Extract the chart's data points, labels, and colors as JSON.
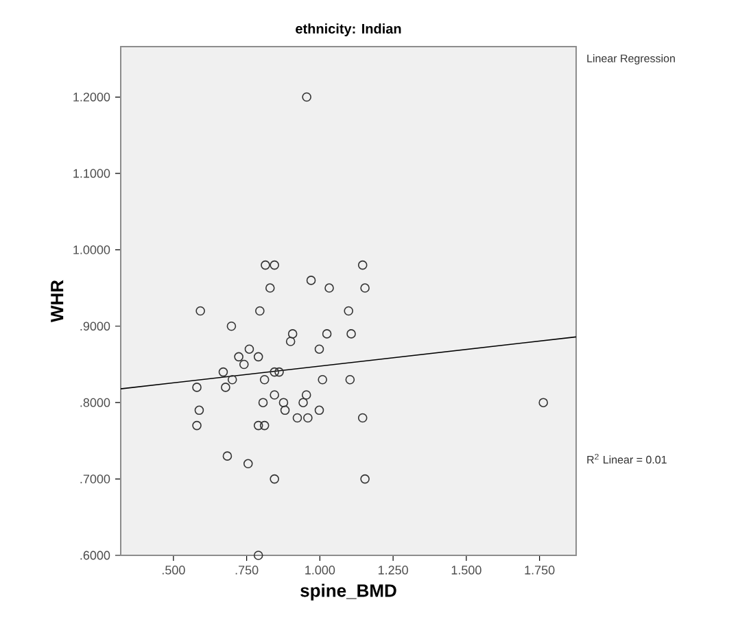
{
  "chart_data": {
    "type": "scatter",
    "title": "ethnicity: Indian",
    "xlabel": "spine_BMD",
    "ylabel": "WHR",
    "annotations": [
      "Linear Regression",
      "R$^{2}$ Linear = 0.01"
    ],
    "xlim": [
      0.32,
      1.875
    ],
    "ylim": [
      0.6,
      1.266
    ],
    "xticks": [
      {
        "value": 0.5,
        "label": ".500"
      },
      {
        "value": 0.75,
        "label": ".750"
      },
      {
        "value": 1.0,
        "label": "1.000"
      },
      {
        "value": 1.25,
        "label": "1.250"
      },
      {
        "value": 1.5,
        "label": "1.500"
      },
      {
        "value": 1.75,
        "label": "1.750"
      }
    ],
    "yticks": [
      {
        "value": 0.6,
        "label": ".6000"
      },
      {
        "value": 0.7,
        "label": ".7000"
      },
      {
        "value": 0.8,
        "label": ".8000"
      },
      {
        "value": 0.9,
        "label": ".9000"
      },
      {
        "value": 1.0,
        "label": "1.0000"
      },
      {
        "value": 1.1,
        "label": "1.1000"
      },
      {
        "value": 1.2,
        "label": "1.2000"
      }
    ],
    "grid": false,
    "series": [
      {
        "marker": "circle",
        "color": "#333333",
        "x": [
          0.955,
          0.814,
          0.845,
          0.83,
          0.97,
          1.032,
          1.146,
          1.154,
          0.592,
          0.795,
          1.098,
          0.698,
          0.907,
          0.9,
          1.024,
          1.107,
          0.998,
          0.759,
          0.723,
          0.79,
          0.741,
          0.67,
          0.861,
          0.845,
          0.701,
          0.811,
          1.009,
          1.103,
          0.58,
          0.678,
          0.845,
          0.954,
          0.806,
          0.876,
          0.943,
          0.588,
          0.881,
          0.923,
          0.959,
          0.998,
          1.146,
          0.58,
          0.79,
          0.811,
          0.684,
          0.755,
          0.845,
          1.154,
          0.79,
          1.763
        ],
        "values": [
          1.2,
          0.98,
          0.98,
          0.95,
          0.96,
          0.95,
          0.98,
          0.95,
          0.92,
          0.92,
          0.92,
          0.9,
          0.89,
          0.88,
          0.89,
          0.89,
          0.87,
          0.87,
          0.86,
          0.86,
          0.85,
          0.84,
          0.84,
          0.84,
          0.83,
          0.83,
          0.83,
          0.83,
          0.82,
          0.82,
          0.81,
          0.81,
          0.8,
          0.8,
          0.8,
          0.79,
          0.79,
          0.78,
          0.78,
          0.79,
          0.78,
          0.77,
          0.77,
          0.77,
          0.73,
          0.72,
          0.7,
          0.7,
          0.6,
          0.8
        ]
      },
      {
        "type": "line",
        "color": "#000000",
        "x": [
          0.32,
          1.875
        ],
        "values": [
          0.818,
          0.886
        ]
      }
    ]
  }
}
